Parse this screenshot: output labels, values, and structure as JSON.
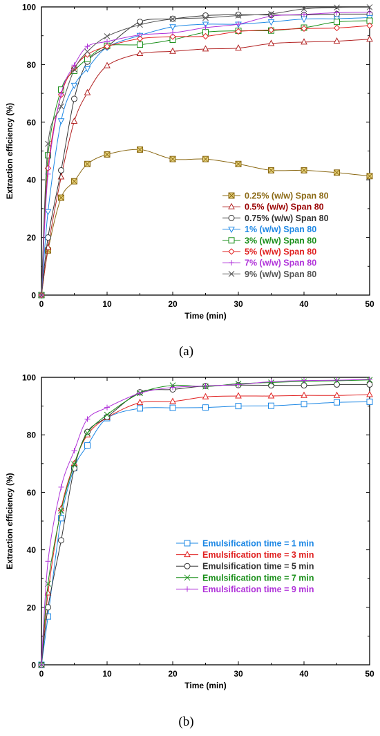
{
  "chart_data": [
    {
      "panel_label": "(a)",
      "type": "line",
      "xlabel": "Time (min)",
      "ylabel": "Extraction efficiency (%)",
      "xlim": [
        0,
        50
      ],
      "ylim": [
        0,
        100
      ],
      "xticks": [
        0,
        10,
        20,
        30,
        40,
        50
      ],
      "yticks": [
        0,
        20,
        40,
        60,
        80,
        100
      ],
      "grid": false,
      "legend_position": "lower-right",
      "x": [
        0,
        1,
        3,
        5,
        7,
        10,
        15,
        20,
        25,
        30,
        35,
        40,
        45,
        50
      ],
      "series": [
        {
          "name": "0.25% (w/w) Span 80",
          "marker": "box-x",
          "color": "#8B6914",
          "marker_fill": "#E6D27A",
          "values": [
            0,
            15.5,
            33.8,
            39.5,
            45.5,
            48.8,
            50.5,
            47.2,
            47.2,
            45.5,
            43.3,
            43.3,
            42.5,
            41.3
          ]
        },
        {
          "name": "0.5% (w/w) Span 80",
          "marker": "triangle",
          "color": "#B22222",
          "label_color": "#990000",
          "values": [
            0,
            16.5,
            41.0,
            60.3,
            70.2,
            79.6,
            83.8,
            84.6,
            85.4,
            85.7,
            87.3,
            87.8,
            88.1,
            88.8
          ]
        },
        {
          "name": "0.75% (w/w) Span 80",
          "marker": "circle",
          "color": "#333333",
          "values": [
            0,
            20.0,
            43.3,
            68.1,
            81.0,
            86.2,
            94.8,
            95.9,
            97.0,
            97.3,
            97.2,
            97.2,
            97.5,
            97.5
          ]
        },
        {
          "name": "1% (w/w) Span 80",
          "marker": "triangle-down",
          "color": "#1E88E5",
          "values": [
            0,
            29.0,
            60.5,
            72.8,
            78.6,
            86.0,
            90.1,
            93.1,
            94.0,
            94.0,
            94.8,
            95.8,
            95.9,
            96.3
          ]
        },
        {
          "name": "3% (w/w) Span 80",
          "marker": "square",
          "color": "#1A8F1A",
          "values": [
            0,
            48.5,
            71.3,
            77.8,
            82.0,
            86.5,
            86.9,
            88.6,
            91.2,
            91.7,
            91.8,
            92.8,
            94.8,
            95.2
          ]
        },
        {
          "name": "5% (w/w) Span 80",
          "marker": "diamond",
          "color": "#E02020",
          "values": [
            0,
            44.0,
            69.5,
            78.8,
            83.5,
            86.3,
            89.0,
            89.7,
            89.8,
            91.5,
            92.0,
            92.5,
            92.7,
            93.5
          ]
        },
        {
          "name": "7% (w/w) Span 80",
          "marker": "plus",
          "color": "#B033D9",
          "values": [
            0,
            42.0,
            69.8,
            79.8,
            86.3,
            88.0,
            90.3,
            91.0,
            92.8,
            94.0,
            96.8,
            97.4,
            98.0,
            98.2
          ]
        },
        {
          "name": "9% (w/w) Span 80",
          "marker": "x",
          "color": "#555555",
          "values": [
            0,
            52.5,
            65.5,
            78.3,
            84.5,
            89.8,
            93.8,
            95.8,
            96.2,
            97.0,
            97.6,
            99.3,
            99.8,
            99.9
          ]
        }
      ]
    },
    {
      "panel_label": "(b)",
      "type": "line",
      "xlabel": "Time (min)",
      "ylabel": "Extraction efficiency (%)",
      "xlim": [
        0,
        50
      ],
      "ylim": [
        0,
        100
      ],
      "xticks": [
        0,
        10,
        20,
        30,
        40,
        50
      ],
      "yticks": [
        0,
        20,
        40,
        60,
        80,
        100
      ],
      "grid": false,
      "legend_position": "lower-right",
      "x": [
        0,
        1,
        3,
        5,
        7,
        10,
        15,
        20,
        25,
        30,
        35,
        40,
        45,
        50
      ],
      "series": [
        {
          "name": "Emulsification time = 1 min",
          "marker": "square",
          "color": "#1E88E5",
          "values": [
            0,
            16.8,
            51.0,
            68.5,
            76.3,
            85.8,
            89.2,
            89.4,
            89.5,
            90.0,
            90.1,
            90.7,
            91.3,
            91.5
          ]
        },
        {
          "name": "Emulsification time = 3 min",
          "marker": "triangle",
          "color": "#E02020",
          "values": [
            0,
            25.0,
            54.3,
            70.0,
            80.0,
            86.0,
            91.2,
            91.6,
            93.2,
            93.5,
            93.5,
            93.7,
            93.7,
            94.0
          ]
        },
        {
          "name": "Emulsification time = 5 min",
          "marker": "circle",
          "color": "#333333",
          "values": [
            0,
            20.0,
            43.3,
            68.3,
            81.0,
            86.2,
            94.8,
            95.8,
            97.0,
            97.3,
            97.2,
            97.2,
            97.5,
            97.5
          ]
        },
        {
          "name": "Emulsification time = 7 min",
          "marker": "x",
          "color": "#1A8F1A",
          "values": [
            0,
            28.2,
            53.6,
            69.8,
            80.6,
            87.0,
            94.5,
            97.2,
            96.8,
            97.8,
            98.2,
            98.6,
            98.8,
            99.1
          ]
        },
        {
          "name": "Emulsification time = 9 min",
          "marker": "plus",
          "color": "#B033D9",
          "values": [
            0,
            36.0,
            61.8,
            74.5,
            85.5,
            89.5,
            94.5,
            96.5,
            97.0,
            97.5,
            98.5,
            98.9,
            99.0,
            99.3
          ]
        }
      ]
    }
  ]
}
